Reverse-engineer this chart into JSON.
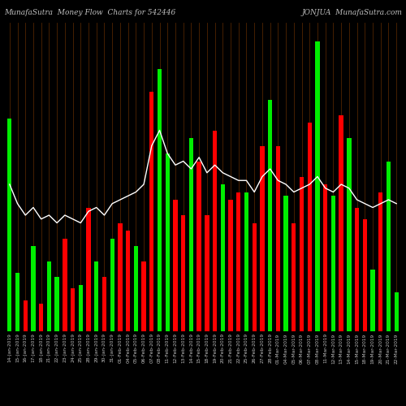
{
  "title_left": "MunafaSutra  Money Flow  Charts for 542446",
  "title_right": "JONJUA  MunafaSutra.com",
  "background_color": "#000000",
  "bar_edge_color": "#000000",
  "line_color": "#ffffff",
  "vertical_line_color": "#5a2800",
  "title_color": "#c0c0c0",
  "title_fontsize": 6.5,
  "tick_fontsize": 4.2,
  "tick_color": "#c0c0c0",
  "categories": [
    "14-Jan-2019",
    "15-Jan-2019",
    "16-Jan-2019",
    "17-Jan-2019",
    "18-Jan-2019",
    "21-Jan-2019",
    "22-Jan-2019",
    "23-Jan-2019",
    "24-Jan-2019",
    "25-Jan-2019",
    "28-Jan-2019",
    "29-Jan-2019",
    "30-Jan-2019",
    "31-Jan-2019",
    "01-Feb-2019",
    "04-Feb-2019",
    "05-Feb-2019",
    "06-Feb-2019",
    "07-Feb-2019",
    "08-Feb-2019",
    "11-Feb-2019",
    "12-Feb-2019",
    "13-Feb-2019",
    "14-Feb-2019",
    "15-Feb-2019",
    "18-Feb-2019",
    "19-Feb-2019",
    "20-Feb-2019",
    "21-Feb-2019",
    "22-Feb-2019",
    "25-Feb-2019",
    "26-Feb-2019",
    "27-Feb-2019",
    "28-Feb-2019",
    "01-Mar-2019",
    "04-Mar-2019",
    "05-Mar-2019",
    "06-Mar-2019",
    "07-Mar-2019",
    "08-Mar-2019",
    "11-Mar-2019",
    "12-Mar-2019",
    "13-Mar-2019",
    "14-Mar-2019",
    "15-Mar-2019",
    "18-Mar-2019",
    "19-Mar-2019",
    "20-Mar-2019",
    "21-Mar-2019",
    "22-Mar-2019"
  ],
  "bar_values": [
    55,
    15,
    8,
    22,
    7,
    18,
    14,
    24,
    11,
    12,
    32,
    18,
    14,
    24,
    28,
    26,
    22,
    18,
    62,
    68,
    46,
    34,
    30,
    50,
    44,
    30,
    52,
    38,
    34,
    36,
    36,
    28,
    48,
    60,
    48,
    35,
    28,
    40,
    54,
    75,
    38,
    35,
    56,
    50,
    32,
    29,
    16,
    36,
    44,
    10
  ],
  "bar_colors": [
    "#00ee00",
    "#00ee00",
    "#ff0000",
    "#00ee00",
    "#ff0000",
    "#00ee00",
    "#00ee00",
    "#ff0000",
    "#ff0000",
    "#00ee00",
    "#ff0000",
    "#00ee00",
    "#ff0000",
    "#00ee00",
    "#ff0000",
    "#ff0000",
    "#00ee00",
    "#ff0000",
    "#ff0000",
    "#00ee00",
    "#00ee00",
    "#ff0000",
    "#ff0000",
    "#00ee00",
    "#ff0000",
    "#ff0000",
    "#ff0000",
    "#00ee00",
    "#ff0000",
    "#ff0000",
    "#00ee00",
    "#ff0000",
    "#ff0000",
    "#00ee00",
    "#ff0000",
    "#00ee00",
    "#ff0000",
    "#ff0000",
    "#ff0000",
    "#00ee00",
    "#ff0000",
    "#00ee00",
    "#ff0000",
    "#00ee00",
    "#ff0000",
    "#ff0000",
    "#00ee00",
    "#ff0000",
    "#00ee00",
    "#00ee00"
  ],
  "line_values": [
    38,
    33,
    30,
    32,
    29,
    30,
    28,
    30,
    29,
    28,
    31,
    32,
    30,
    33,
    34,
    35,
    36,
    38,
    48,
    52,
    46,
    43,
    44,
    42,
    45,
    41,
    43,
    41,
    40,
    39,
    39,
    36,
    40,
    42,
    39,
    38,
    36,
    37,
    38,
    40,
    37,
    36,
    38,
    37,
    34,
    33,
    32,
    33,
    34,
    33
  ],
  "ylim": [
    0,
    80
  ],
  "bar_width": 0.55
}
